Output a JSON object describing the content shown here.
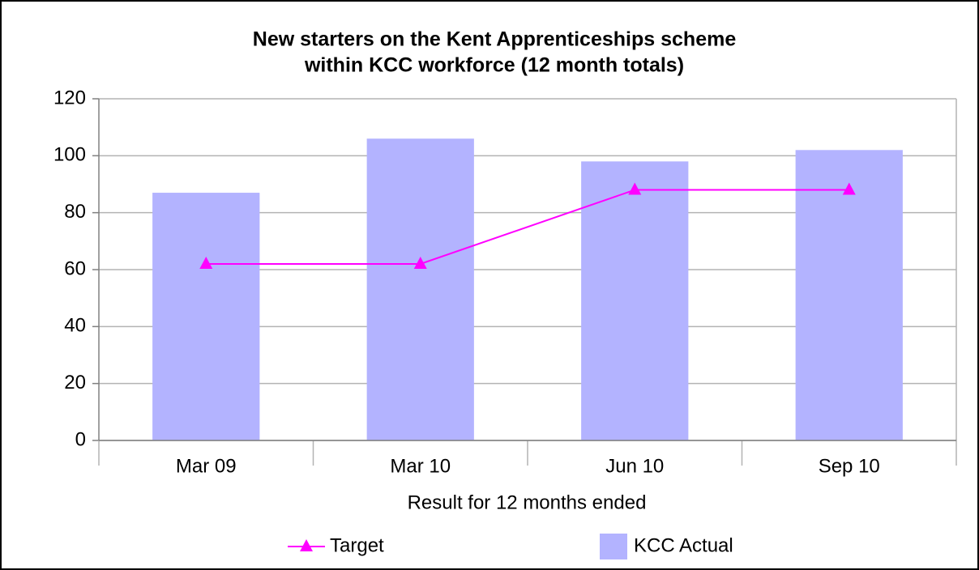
{
  "chart_data": {
    "type": "bar",
    "title": [
      "New starters on the Kent Apprenticeships scheme",
      "within KCC workforce (12 month totals)"
    ],
    "x_label": "Result for 12 months ended",
    "categories": [
      "Mar 09",
      "Mar 10",
      "Jun 10",
      "Sep 10"
    ],
    "series": [
      {
        "name": "KCC Actual",
        "type": "bar",
        "color": "#b3b3ff",
        "values": [
          87,
          106,
          98,
          102
        ]
      },
      {
        "name": "Target",
        "type": "line",
        "color": "#ff00ff",
        "values": [
          62,
          62,
          88,
          88
        ]
      }
    ],
    "ylim": [
      0,
      120
    ],
    "yticks": [
      0,
      20,
      40,
      60,
      80,
      100,
      120
    ],
    "grid": true,
    "legend": "bottom"
  }
}
